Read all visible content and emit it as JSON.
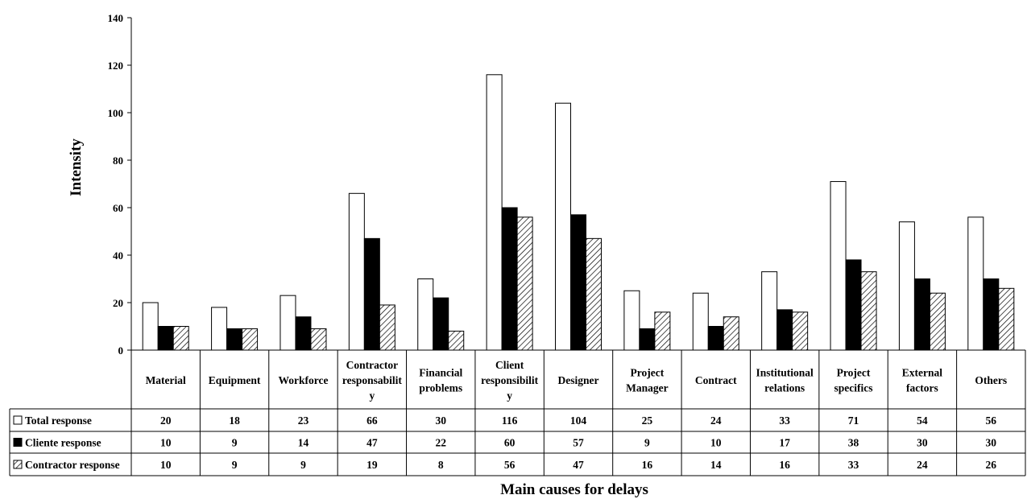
{
  "chart_data": {
    "type": "bar",
    "title": "",
    "xlabel": "Main causes for delays",
    "ylabel": "Intensity",
    "ylim": [
      0,
      140
    ],
    "yticks": [
      0,
      20,
      40,
      60,
      80,
      100,
      120,
      140
    ],
    "grid": false,
    "legend_placement": "data-table-left",
    "categories": [
      [
        "Material"
      ],
      [
        "Equipment"
      ],
      [
        "Workforce"
      ],
      [
        "Contractor",
        "responsabilit",
        "y"
      ],
      [
        "Financial",
        "problems"
      ],
      [
        "Client",
        "responsibilit",
        "y"
      ],
      [
        "Designer"
      ],
      [
        "Project",
        "Manager"
      ],
      [
        "Contract"
      ],
      [
        "Institutional",
        "relations"
      ],
      [
        "Project",
        "specifics"
      ],
      [
        "External",
        "factors"
      ],
      [
        "Others"
      ]
    ],
    "series": [
      {
        "name": "Total response",
        "fill": "white",
        "values": [
          20,
          18,
          23,
          66,
          30,
          116,
          104,
          25,
          24,
          33,
          71,
          54,
          56
        ]
      },
      {
        "name": "Cliente response",
        "fill": "black",
        "values": [
          10,
          9,
          14,
          47,
          22,
          60,
          57,
          9,
          10,
          17,
          38,
          30,
          30
        ]
      },
      {
        "name": "Contractor response",
        "fill": "hatched",
        "values": [
          10,
          9,
          9,
          19,
          8,
          56,
          47,
          16,
          14,
          16,
          33,
          24,
          26
        ]
      }
    ]
  },
  "colors": {
    "axis": "#000000",
    "bar_white": "#ffffff",
    "bar_black": "#000000",
    "hatch": "#000000"
  }
}
